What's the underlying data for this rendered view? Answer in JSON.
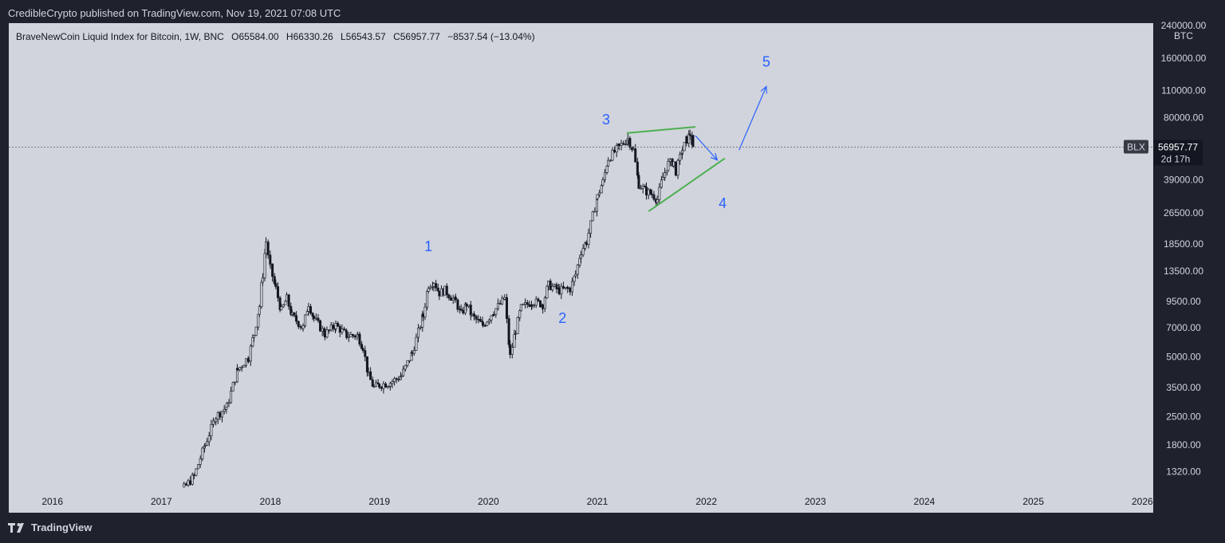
{
  "header": {
    "publisher_line": "CredibleCrypto published on TradingView.com, Nov 19, 2021 07:08 UTC"
  },
  "legend": {
    "title": "BraveNewCoin Liquid Index for Bitcoin, 1W, BNC",
    "o_label": "O",
    "o_value": "65584.00",
    "h_label": "H",
    "h_value": "66330.26",
    "l_label": "L",
    "l_value": "56543.57",
    "c_label": "C",
    "c_value": "56957.77",
    "change": "−8537.54 (−13.04%)"
  },
  "price_axis": {
    "currency": "BTC",
    "top_label": "240000.00",
    "ticks": [
      "160000.00",
      "110000.00",
      "80000.00",
      "39000.00",
      "26500.00",
      "18500.00",
      "13500.00",
      "9500.00",
      "7000.00",
      "5000.00",
      "3500.00",
      "2500.00",
      "1800.00",
      "1320.00"
    ]
  },
  "price_tag": {
    "symbol": "BLX",
    "price": "56957.77",
    "countdown": "2d 17h"
  },
  "footer": {
    "brand": "TradingView"
  },
  "colors": {
    "background": "#1e222d",
    "plot": "#d1d4dc",
    "candle": "#131722",
    "wave_label": "#2962ff",
    "trendline": "#4caf50",
    "arrow": "#2962ff"
  },
  "chart_data": {
    "type": "candlestick",
    "title": "BraveNewCoin Liquid Index for Bitcoin, 1W, BNC",
    "y_scale": "log",
    "ylim": [
      1100,
      240000
    ],
    "xlim": [
      2015.6,
      2026.1
    ],
    "x_ticks": [
      "2016",
      "2017",
      "2018",
      "2019",
      "2020",
      "2021",
      "2022",
      "2023",
      "2024",
      "2025",
      "2026"
    ],
    "y_ticks": [
      160000,
      110000,
      80000,
      39000,
      26500,
      18500,
      13500,
      9500,
      7000,
      5000,
      3500,
      2500,
      1800,
      1320
    ],
    "last_price": 56957.77,
    "price_path": [
      [
        2017.0,
        900
      ],
      [
        2017.15,
        1000
      ],
      [
        2017.3,
        1250
      ],
      [
        2017.4,
        1800
      ],
      [
        2017.5,
        2500
      ],
      [
        2017.6,
        2800
      ],
      [
        2017.7,
        4300
      ],
      [
        2017.8,
        5000
      ],
      [
        2017.85,
        6500
      ],
      [
        2017.9,
        9000
      ],
      [
        2017.93,
        13000
      ],
      [
        2017.96,
        19000
      ],
      [
        2018.0,
        14000
      ],
      [
        2018.05,
        11000
      ],
      [
        2018.1,
        8500
      ],
      [
        2018.15,
        9800
      ],
      [
        2018.2,
        8000
      ],
      [
        2018.3,
        7000
      ],
      [
        2018.35,
        9300
      ],
      [
        2018.4,
        7800
      ],
      [
        2018.5,
        6500
      ],
      [
        2018.6,
        7200
      ],
      [
        2018.7,
        6400
      ],
      [
        2018.8,
        6400
      ],
      [
        2018.85,
        5600
      ],
      [
        2018.9,
        4000
      ],
      [
        2018.95,
        3500
      ],
      [
        2019.0,
        3600
      ],
      [
        2019.1,
        3700
      ],
      [
        2019.2,
        4000
      ],
      [
        2019.3,
        5200
      ],
      [
        2019.4,
        8000
      ],
      [
        2019.45,
        11500
      ],
      [
        2019.5,
        12000
      ],
      [
        2019.55,
        10500
      ],
      [
        2019.6,
        10800
      ],
      [
        2019.7,
        9500
      ],
      [
        2019.75,
        8200
      ],
      [
        2019.8,
        9200
      ],
      [
        2019.85,
        8000
      ],
      [
        2019.95,
        7200
      ],
      [
        2020.05,
        8500
      ],
      [
        2020.15,
        9800
      ],
      [
        2020.2,
        5000
      ],
      [
        2020.25,
        6800
      ],
      [
        2020.3,
        8800
      ],
      [
        2020.4,
        9500
      ],
      [
        2020.5,
        9200
      ],
      [
        2020.55,
        11500
      ],
      [
        2020.65,
        10800
      ],
      [
        2020.75,
        11000
      ],
      [
        2020.8,
        13000
      ],
      [
        2020.85,
        17000
      ],
      [
        2020.9,
        19000
      ],
      [
        2021.0,
        32000
      ],
      [
        2021.05,
        38000
      ],
      [
        2021.1,
        50000
      ],
      [
        2021.2,
        57000
      ],
      [
        2021.28,
        63000
      ],
      [
        2021.33,
        55000
      ],
      [
        2021.38,
        37000
      ],
      [
        2021.45,
        34000
      ],
      [
        2021.5,
        33000
      ],
      [
        2021.55,
        31000
      ],
      [
        2021.6,
        40000
      ],
      [
        2021.65,
        47000
      ],
      [
        2021.7,
        48000
      ],
      [
        2021.72,
        43000
      ],
      [
        2021.78,
        55000
      ],
      [
        2021.82,
        62000
      ],
      [
        2021.85,
        66000
      ],
      [
        2021.88,
        56957.77
      ]
    ],
    "annotations": [
      {
        "type": "wave_label",
        "text": "1",
        "x": 2019.45,
        "y": 17000
      },
      {
        "type": "wave_label",
        "text": "2",
        "x": 2020.68,
        "y": 7400
      },
      {
        "type": "wave_label",
        "text": "3",
        "x": 2021.08,
        "y": 74000
      },
      {
        "type": "wave_label",
        "text": "4",
        "x": 2022.15,
        "y": 28000
      },
      {
        "type": "wave_label",
        "text": "5",
        "x": 2022.55,
        "y": 145000
      },
      {
        "type": "trendline",
        "from": [
          2021.27,
          67000
        ],
        "to": [
          2021.9,
          72000
        ]
      },
      {
        "type": "trendline",
        "from": [
          2021.47,
          27000
        ],
        "to": [
          2022.17,
          50000
        ]
      },
      {
        "type": "arrow",
        "from": [
          2021.9,
          65000
        ],
        "to": [
          2022.1,
          49000
        ]
      },
      {
        "type": "arrow",
        "from": [
          2022.3,
          55000
        ],
        "to": [
          2022.55,
          115000
        ]
      }
    ]
  }
}
